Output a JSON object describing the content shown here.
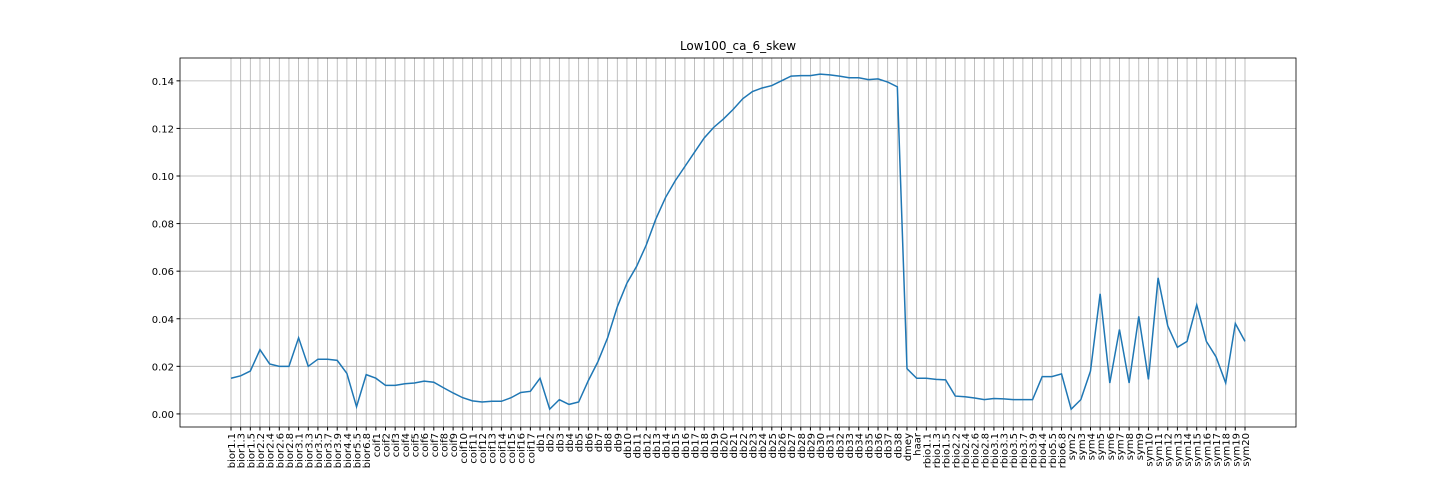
{
  "chart_data": {
    "type": "line",
    "title": "Low100_ca_6_skew",
    "categories": [
      "bior1.1",
      "bior1.3",
      "bior1.5",
      "bior2.2",
      "bior2.4",
      "bior2.6",
      "bior2.8",
      "bior3.1",
      "bior3.3",
      "bior3.5",
      "bior3.7",
      "bior3.9",
      "bior4.4",
      "bior5.5",
      "bior6.8",
      "coif1",
      "coif2",
      "coif3",
      "coif4",
      "coif5",
      "coif6",
      "coif7",
      "coif8",
      "coif9",
      "coif10",
      "coif11",
      "coif12",
      "coif13",
      "coif14",
      "coif15",
      "coif16",
      "coif17",
      "db1",
      "db2",
      "db3",
      "db4",
      "db5",
      "db6",
      "db7",
      "db8",
      "db9",
      "db10",
      "db11",
      "db12",
      "db13",
      "db14",
      "db15",
      "db16",
      "db17",
      "db18",
      "db19",
      "db20",
      "db21",
      "db22",
      "db23",
      "db24",
      "db25",
      "db26",
      "db27",
      "db28",
      "db29",
      "db30",
      "db31",
      "db32",
      "db33",
      "db34",
      "db35",
      "db36",
      "db37",
      "db38",
      "dmey",
      "haar",
      "rbio1.1",
      "rbio1.3",
      "rbio1.5",
      "rbio2.2",
      "rbio2.4",
      "rbio2.6",
      "rbio2.8",
      "rbio3.1",
      "rbio3.3",
      "rbio3.5",
      "rbio3.7",
      "rbio3.9",
      "rbio4.4",
      "rbio5.5",
      "rbio6.8",
      "sym2",
      "sym3",
      "sym4",
      "sym5",
      "sym6",
      "sym7",
      "sym8",
      "sym9",
      "sym10",
      "sym11",
      "sym12",
      "sym13",
      "sym14",
      "sym15",
      "sym16",
      "sym17",
      "sym18",
      "sym19",
      "sym20"
    ],
    "series": [
      {
        "name": "Low100_ca_6_skew",
        "color": "#1f77b4",
        "values": [
          0.015,
          0.016,
          0.018,
          0.027,
          0.021,
          0.02,
          0.02,
          0.032,
          0.02,
          0.023,
          0.023,
          0.0225,
          0.017,
          0.003,
          0.0165,
          0.015,
          0.012,
          0.012,
          0.0127,
          0.013,
          0.0138,
          0.0133,
          0.011,
          0.0088,
          0.0068,
          0.0055,
          0.005,
          0.0053,
          0.0053,
          0.0068,
          0.009,
          0.0095,
          0.015,
          0.002,
          0.006,
          0.004,
          0.005,
          0.014,
          0.022,
          0.032,
          0.045,
          0.055,
          0.062,
          0.071,
          0.082,
          0.091,
          0.098,
          0.104,
          0.11,
          0.116,
          0.1205,
          0.124,
          0.128,
          0.1325,
          0.1355,
          0.137,
          0.138,
          0.14,
          0.142,
          0.1422,
          0.1422,
          0.1428,
          0.1425,
          0.142,
          0.1413,
          0.1413,
          0.1405,
          0.1408,
          0.1395,
          0.1375,
          0.019,
          0.015,
          0.015,
          0.0145,
          0.0143,
          0.0075,
          0.0072,
          0.0067,
          0.006,
          0.0065,
          0.0063,
          0.006,
          0.006,
          0.006,
          0.0157,
          0.0157,
          0.0168,
          0.002,
          0.006,
          0.018,
          0.0505,
          0.013,
          0.0355,
          0.013,
          0.041,
          0.0145,
          0.0572,
          0.037,
          0.028,
          0.0305,
          0.0458,
          0.0305,
          0.024,
          0.013,
          0.038,
          0.0305
        ]
      }
    ],
    "ylim": [
      -0.0055,
      0.1496
    ],
    "yticks": [
      {
        "value": 0,
        "label": "0.00"
      },
      {
        "value": 0.02,
        "label": "0.02"
      },
      {
        "value": 0.04,
        "label": "0.04"
      },
      {
        "value": 0.06,
        "label": "0.06"
      },
      {
        "value": 0.08,
        "label": "0.08"
      },
      {
        "value": 0.1,
        "label": "0.10"
      },
      {
        "value": 0.12,
        "label": "0.12"
      },
      {
        "value": 0.14,
        "label": "0.14"
      }
    ],
    "grid": true
  }
}
